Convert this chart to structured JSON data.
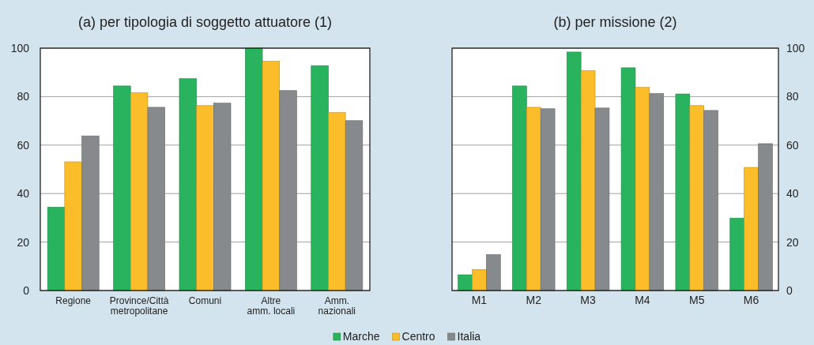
{
  "chart_data": [
    {
      "type": "bar",
      "title": "(a) per tipologia di soggetto attuatore (1)",
      "categories": [
        "Regione",
        "Province/Città\nmetropolitane",
        "Comuni",
        "Altre\namm. locali",
        "Amm.\nnazionali"
      ],
      "series": [
        {
          "name": "Marche",
          "color": "#2ab35e",
          "values": [
            34.4,
            84.4,
            87.4,
            100,
            92.8
          ]
        },
        {
          "name": "Centro",
          "color": "#fbbd2a",
          "values": [
            53.1,
            81.6,
            76.3,
            94.6,
            73.4
          ]
        },
        {
          "name": "Italia",
          "color": "#868a8c",
          "values": [
            63.8,
            75.6,
            77.3,
            82.5,
            70.1
          ]
        }
      ],
      "ylim": [
        0,
        100
      ],
      "yticks": [
        0,
        20,
        40,
        60,
        80,
        100
      ],
      "grid": "y",
      "legend": "bottom"
    },
    {
      "type": "bar",
      "title": "(b) per missione (2)",
      "categories": [
        "M1",
        "M2",
        "M3",
        "M4",
        "M5",
        "M6"
      ],
      "series": [
        {
          "name": "Marche",
          "color": "#2ab35e",
          "values": [
            6.5,
            84.4,
            98.4,
            91.9,
            81.1,
            29.9
          ]
        },
        {
          "name": "Centro",
          "color": "#fbbd2a",
          "values": [
            8.7,
            75.6,
            90.7,
            83.8,
            76.3,
            50.8
          ]
        },
        {
          "name": "Italia",
          "color": "#868a8c",
          "values": [
            14.8,
            75.0,
            75.3,
            81.3,
            74.3,
            60.6
          ]
        }
      ],
      "ylim": [
        0,
        100
      ],
      "yticks": [
        0,
        20,
        40,
        60,
        80,
        100
      ],
      "grid": "y",
      "legend": "bottom"
    }
  ]
}
